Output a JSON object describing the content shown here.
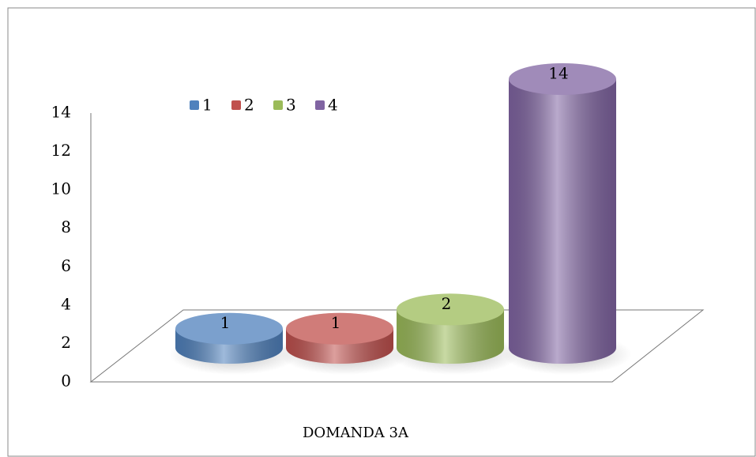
{
  "chart_data": {
    "type": "cylinder-bar",
    "categories": [
      "DOMANDA 3A"
    ],
    "series": [
      {
        "name": "1",
        "color": "#4f81bd",
        "values": [
          1
        ]
      },
      {
        "name": "2",
        "color": "#c0504d",
        "values": [
          1
        ]
      },
      {
        "name": "3",
        "color": "#9bbb59",
        "values": [
          2
        ]
      },
      {
        "name": "4",
        "color": "#8064a2",
        "values": [
          14
        ]
      }
    ],
    "ylim": [
      0,
      14
    ],
    "yticks": [
      0,
      2,
      4,
      6,
      8,
      10,
      12,
      14
    ],
    "legend": "top"
  }
}
